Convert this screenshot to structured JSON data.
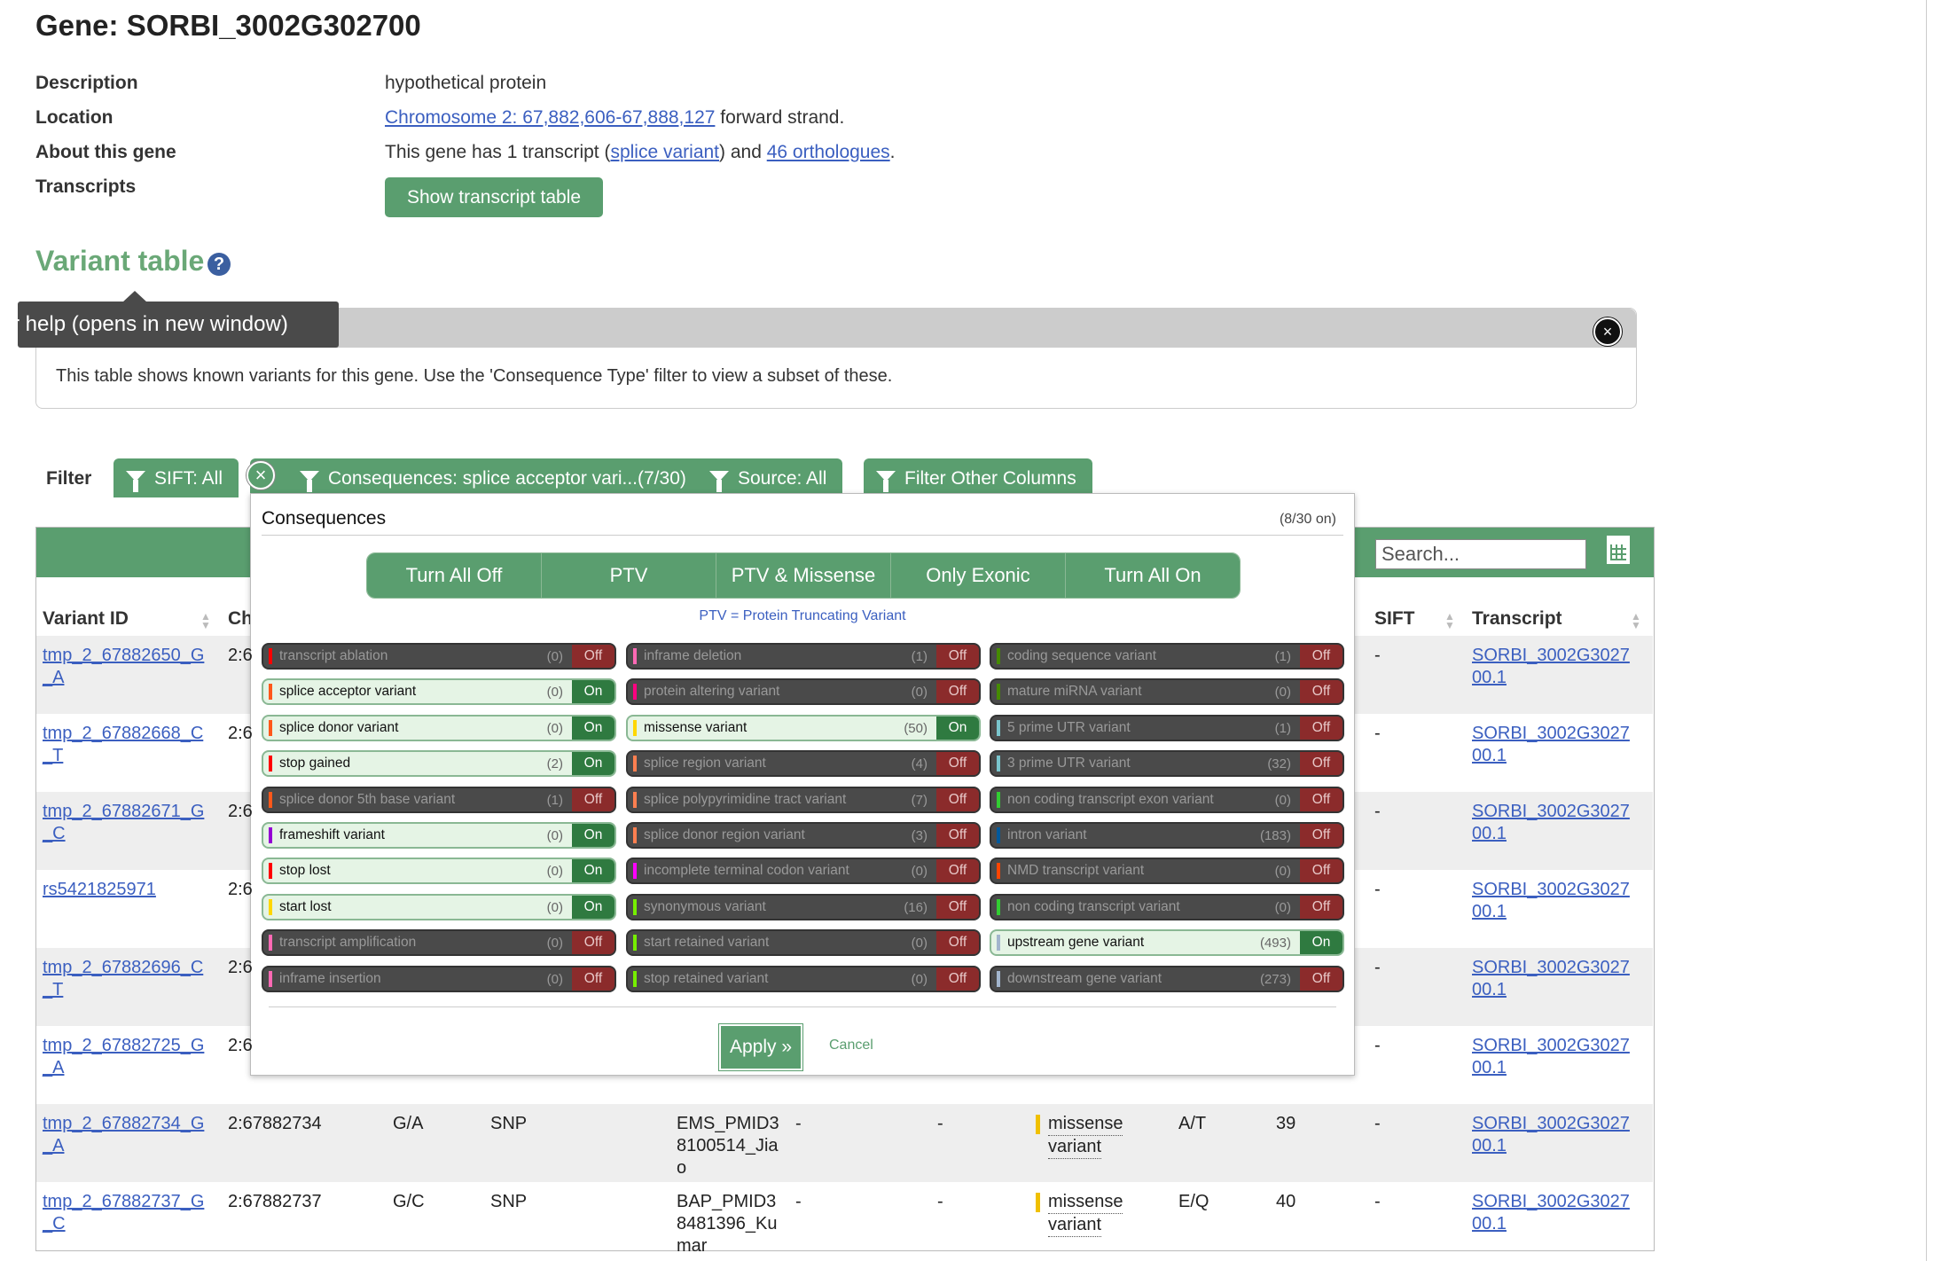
{
  "gene": {
    "title": "Gene: SORBI_3002G302700",
    "description_label": "Description",
    "description": "hypothetical protein",
    "location_label": "Location",
    "location_link": "Chromosome 2: 67,882,606-67,888,127",
    "location_suffix": " forward strand.",
    "about_label": "About this gene",
    "about_prefix": "This gene has 1 transcript (",
    "about_link1": "splice variant",
    "about_mid": ") and ",
    "about_link2": "46 orthologues",
    "about_suffix": ".",
    "transcripts_label": "Transcripts",
    "show_transcripts_button": "Show transcript table"
  },
  "variant_section": {
    "heading": "Variant table",
    "help_icon": "?",
    "tooltip": "r help (opens in new window)",
    "info_text": "This table shows known variants for this gene. Use the 'Consequence Type' filter to view a subset of these.",
    "close_icon": "×"
  },
  "filter": {
    "label": "Filter",
    "sift": "SIFT: All",
    "consequences": "Consequences: splice acceptor vari...(7/30)",
    "source": "Source: All",
    "other": "Filter Other Columns",
    "clear_icon": "×"
  },
  "table": {
    "search_placeholder": "Search...",
    "headers": {
      "variant_id": "Variant ID",
      "chr": "Ch",
      "sift": "SIFT",
      "transcript": "Transcript"
    },
    "rows": [
      {
        "id": [
          "tmp_2_67882650_G",
          "_A"
        ],
        "chr": "2:6",
        "allele": "",
        "class": "",
        "source": [],
        "a": "",
        "b": "",
        "cons": [],
        "aa": "",
        "pos": "",
        "sift": "-",
        "tr": [
          "SORBI_3002G3027",
          "00.1"
        ]
      },
      {
        "id": [
          "tmp_2_67882668_C",
          "_T"
        ],
        "chr": "2:6",
        "allele": "",
        "class": "",
        "source": [],
        "a": "",
        "b": "",
        "cons": [],
        "aa": "",
        "pos": "",
        "sift": "-",
        "tr": [
          "SORBI_3002G3027",
          "00.1"
        ]
      },
      {
        "id": [
          "tmp_2_67882671_G",
          "_C"
        ],
        "chr": "2:6",
        "allele": "",
        "class": "",
        "source": [],
        "a": "",
        "b": "",
        "cons": [],
        "aa": "",
        "pos": "",
        "sift": "-",
        "tr": [
          "SORBI_3002G3027",
          "00.1"
        ]
      },
      {
        "id": [
          "rs5421825971"
        ],
        "chr": "2:6",
        "allele": "",
        "class": "",
        "source": [],
        "a": "",
        "b": "",
        "cons": [],
        "aa": "",
        "pos": "",
        "sift": "-",
        "tr": [
          "SORBI_3002G3027",
          "00.1"
        ]
      },
      {
        "id": [
          "tmp_2_67882696_C",
          "_T"
        ],
        "chr": "2:6",
        "allele": "",
        "class": "",
        "source": [],
        "a": "",
        "b": "",
        "cons": [],
        "aa": "",
        "pos": "",
        "sift": "-",
        "tr": [
          "SORBI_3002G3027",
          "00.1"
        ]
      },
      {
        "id": [
          "tmp_2_67882725_G",
          "_A"
        ],
        "chr": "2:6",
        "allele": "",
        "class": "",
        "source": [],
        "a": "",
        "b": "",
        "cons": [],
        "aa": "",
        "pos": "",
        "sift": "-",
        "tr": [
          "SORBI_3002G3027",
          "00.1"
        ]
      },
      {
        "id": [
          "tmp_2_67882734_G",
          "_A"
        ],
        "chr": "2:67882734",
        "allele": "G/A",
        "class": "SNP",
        "source": [
          "EMS_PMID3",
          "8100514_Jia",
          "o"
        ],
        "a": "-",
        "b": "-",
        "cons": [
          "missense",
          "variant"
        ],
        "aa": "A/T",
        "pos": "39",
        "sift": "-",
        "tr": [
          "SORBI_3002G3027",
          "00.1"
        ]
      },
      {
        "id": [
          "tmp_2_67882737_G",
          "_C"
        ],
        "chr": "2:67882737",
        "allele": "G/C",
        "class": "SNP",
        "source": [
          "BAP_PMID3",
          "8481396_Ku",
          "mar"
        ],
        "a": "-",
        "b": "-",
        "cons": [
          "missense",
          "variant"
        ],
        "aa": "E/Q",
        "pos": "40",
        "sift": "-",
        "tr": [
          "SORBI_3002G3027",
          "00.1"
        ]
      }
    ]
  },
  "popup": {
    "title": "Consequences",
    "count": "(8/30 on)",
    "presets": [
      "Turn All Off",
      "PTV",
      "PTV & Missense",
      "Only Exonic",
      "Turn All On"
    ],
    "ptv_note": "PTV = Protein Truncating Variant",
    "apply": "Apply »",
    "cancel": "Cancel",
    "columns": [
      [
        {
          "label": "transcript ablation",
          "count": "(0)",
          "state": "Off",
          "color": "#ff0000"
        },
        {
          "label": "splice acceptor variant",
          "count": "(0)",
          "state": "On",
          "color": "#ff581a"
        },
        {
          "label": "splice donor variant",
          "count": "(0)",
          "state": "On",
          "color": "#ff581a"
        },
        {
          "label": "stop gained",
          "count": "(2)",
          "state": "On",
          "color": "#ff0000"
        },
        {
          "label": "splice donor 5th base variant",
          "count": "(1)",
          "state": "Off",
          "color": "#ff581a"
        },
        {
          "label": "frameshift variant",
          "count": "(0)",
          "state": "On",
          "color": "#9400d3"
        },
        {
          "label": "stop lost",
          "count": "(0)",
          "state": "On",
          "color": "#ff0000"
        },
        {
          "label": "start lost",
          "count": "(0)",
          "state": "On",
          "color": "#ffd700"
        },
        {
          "label": "transcript amplification",
          "count": "(0)",
          "state": "Off",
          "color": "#ff69b4"
        },
        {
          "label": "inframe insertion",
          "count": "(0)",
          "state": "Off",
          "color": "#ff69b4"
        }
      ],
      [
        {
          "label": "inframe deletion",
          "count": "(1)",
          "state": "Off",
          "color": "#ff69b4"
        },
        {
          "label": "protein altering variant",
          "count": "(0)",
          "state": "Off",
          "color": "#ff0080"
        },
        {
          "label": "missense variant",
          "count": "(50)",
          "state": "On",
          "color": "#ffd700"
        },
        {
          "label": "splice region variant",
          "count": "(4)",
          "state": "Off",
          "color": "#ff7f50"
        },
        {
          "label": "splice polypyrimidine tract variant",
          "count": "(7)",
          "state": "Off",
          "color": "#ff7f50"
        },
        {
          "label": "splice donor region variant",
          "count": "(3)",
          "state": "Off",
          "color": "#ff7f50"
        },
        {
          "label": "incomplete terminal codon variant",
          "count": "(0)",
          "state": "Off",
          "color": "#ff00ff"
        },
        {
          "label": "synonymous variant",
          "count": "(16)",
          "state": "Off",
          "color": "#76ee00"
        },
        {
          "label": "start retained variant",
          "count": "(0)",
          "state": "Off",
          "color": "#76ee00"
        },
        {
          "label": "stop retained variant",
          "count": "(0)",
          "state": "Off",
          "color": "#76ee00"
        }
      ],
      [
        {
          "label": "coding sequence variant",
          "count": "(1)",
          "state": "Off",
          "color": "#458b00"
        },
        {
          "label": "mature miRNA variant",
          "count": "(0)",
          "state": "Off",
          "color": "#458b00"
        },
        {
          "label": "5 prime UTR variant",
          "count": "(1)",
          "state": "Off",
          "color": "#7ac5cd"
        },
        {
          "label": "3 prime UTR variant",
          "count": "(32)",
          "state": "Off",
          "color": "#7ac5cd"
        },
        {
          "label": "non coding transcript exon variant",
          "count": "(0)",
          "state": "Off",
          "color": "#32cd32"
        },
        {
          "label": "intron variant",
          "count": "(183)",
          "state": "Off",
          "color": "#02599c"
        },
        {
          "label": "NMD transcript variant",
          "count": "(0)",
          "state": "Off",
          "color": "#ff4500"
        },
        {
          "label": "non coding transcript variant",
          "count": "(0)",
          "state": "Off",
          "color": "#32cd32"
        },
        {
          "label": "upstream gene variant",
          "count": "(493)",
          "state": "On",
          "color": "#a2b5cd"
        },
        {
          "label": "downstream gene variant",
          "count": "(273)",
          "state": "Off",
          "color": "#a2b5cd"
        }
      ]
    ]
  },
  "colors": {
    "green": "#5a9e6f",
    "heading_green": "#6aa877",
    "link": "#3b5fc0"
  }
}
